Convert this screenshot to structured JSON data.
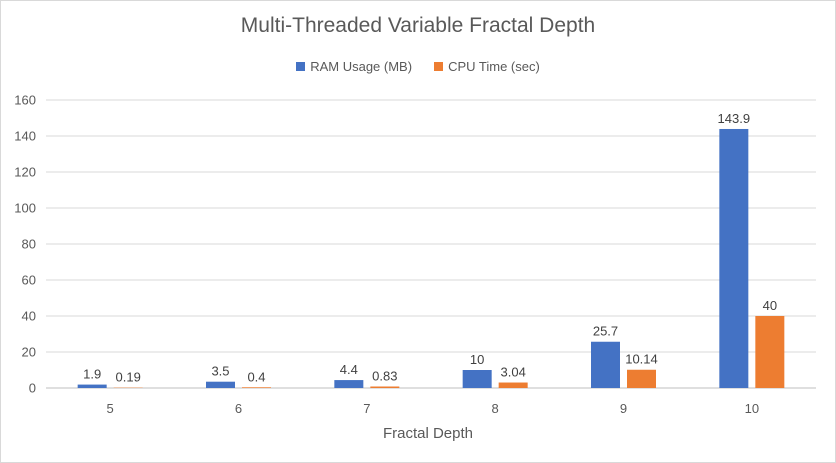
{
  "chart_data": {
    "type": "bar",
    "title": "Multi-Threaded Variable Fractal Depth",
    "xlabel": "Fractal Depth",
    "ylabel": "",
    "categories": [
      "5",
      "6",
      "7",
      "8",
      "9",
      "10"
    ],
    "series": [
      {
        "name": "RAM Usage (MB)",
        "color": "#4472c4",
        "values": [
          1.9,
          3.5,
          4.4,
          10,
          25.7,
          143.9
        ]
      },
      {
        "name": "CPU Time (sec)",
        "color": "#ed7d31",
        "values": [
          0.19,
          0.4,
          0.83,
          3.04,
          10.14,
          40
        ]
      }
    ],
    "ylim": [
      0,
      160
    ],
    "yticks": [
      0,
      20,
      40,
      60,
      80,
      100,
      120,
      140,
      160
    ],
    "data_labels": {
      "RAM Usage (MB)": [
        "1.9",
        "3.5",
        "4.4",
        "10",
        "25.7",
        "143.9"
      ],
      "CPU Time (sec)": [
        "0.19",
        "0.4",
        "0.83",
        "3.04",
        "10.14",
        "40"
      ]
    },
    "grid": true,
    "legend_position": "top"
  }
}
